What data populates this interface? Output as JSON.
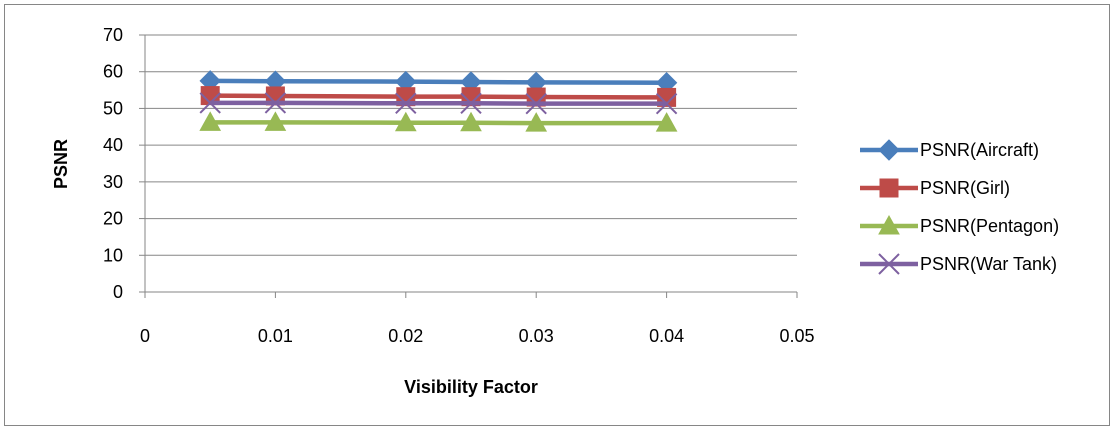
{
  "chart_data": {
    "type": "line",
    "xlabel": "Visibility Factor",
    "ylabel": "PSNR",
    "xlim": [
      0,
      0.05
    ],
    "ylim": [
      0,
      70
    ],
    "x_ticks": [
      "0",
      "0.01",
      "0.02",
      "0.03",
      "0.04",
      "0.05"
    ],
    "y_ticks": [
      "0",
      "10",
      "20",
      "30",
      "40",
      "50",
      "60",
      "70"
    ],
    "grid": "horizontal",
    "legend_position": "right",
    "x": [
      0.005,
      0.01,
      0.02,
      0.025,
      0.03,
      0.04
    ],
    "series": [
      {
        "name": "PSNR(Aircraft)",
        "values": [
          57.5,
          57.4,
          57.3,
          57.2,
          57.1,
          57.0
        ],
        "color": "#4a7ebb",
        "marker": "diamond"
      },
      {
        "name": "PSNR(Girl)",
        "values": [
          53.5,
          53.4,
          53.2,
          53.2,
          53.1,
          53.0
        ],
        "color": "#be4b48",
        "marker": "square"
      },
      {
        "name": "PSNR(Pentagon)",
        "values": [
          46.2,
          46.2,
          46.1,
          46.1,
          46.0,
          46.0
        ],
        "color": "#98b954",
        "marker": "triangle"
      },
      {
        "name": "PSNR(War Tank)",
        "values": [
          51.5,
          51.5,
          51.4,
          51.4,
          51.3,
          51.3
        ],
        "color": "#7d60a0",
        "marker": "x"
      }
    ]
  }
}
